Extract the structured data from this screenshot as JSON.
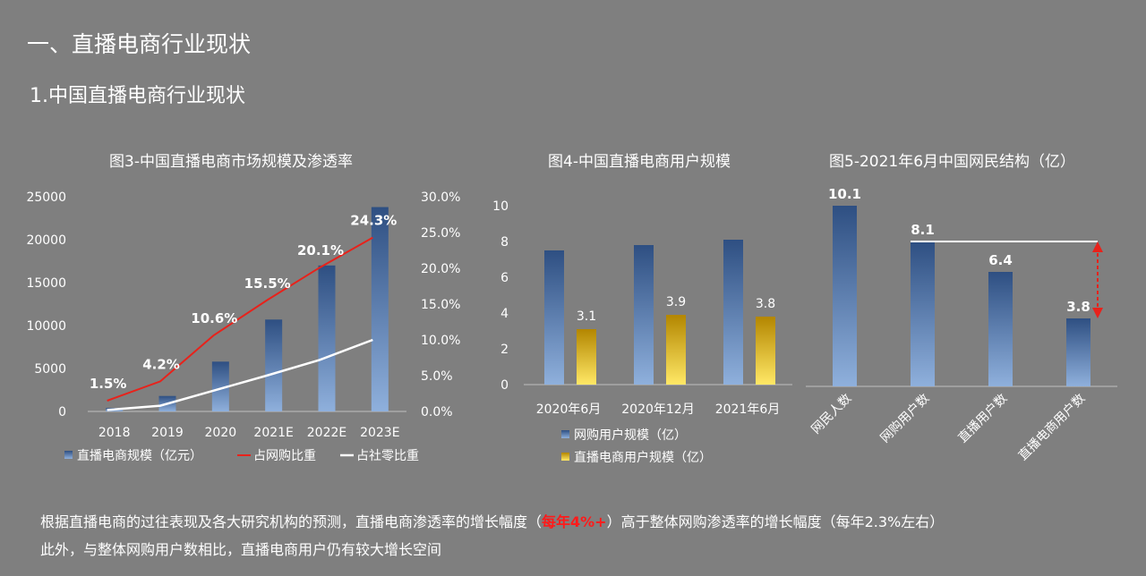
{
  "header": {
    "section_title": "一、直播电商行业现状",
    "subsection_title": "1.中国直播电商行业现状"
  },
  "colors": {
    "background": "#7f7f7f",
    "bar_blue_top": "#2e4f82",
    "bar_blue_bottom": "#8fb0dc",
    "bar_gold_top": "#b38600",
    "bar_gold_bottom": "#ffe866",
    "line_red": "#e8221b",
    "line_white": "#ffffff",
    "highlight_red": "#ff1a1a",
    "dashed_arrow": "#e8221b"
  },
  "chart_data": [
    {
      "type": "bar",
      "title": "图3-中国直播电商市场规模及渗透率",
      "categories": [
        "2018",
        "2019",
        "2020",
        "2021E",
        "2022E",
        "2023E"
      ],
      "series": [
        {
          "name": "直播电商规模（亿元）",
          "kind": "bar",
          "axis": "left",
          "values": [
            400,
            1800,
            5800,
            10700,
            17000,
            23800
          ]
        },
        {
          "name": "占网购比重",
          "kind": "line",
          "axis": "right",
          "values": [
            0.015,
            0.042,
            0.106,
            0.155,
            0.201,
            0.243
          ],
          "labels": [
            "1.5%",
            "4.2%",
            "10.6%",
            "15.5%",
            "20.1%",
            "24.3%"
          ]
        },
        {
          "name": "占社零比重",
          "kind": "line",
          "axis": "right",
          "values": [
            0.002,
            0.008,
            0.029,
            0.05,
            0.072,
            0.1
          ]
        }
      ],
      "y_left": {
        "ylim": [
          0,
          25000
        ],
        "ticks": [
          "0",
          "5000",
          "10000",
          "15000",
          "20000",
          "25000"
        ]
      },
      "y_right": {
        "ylim": [
          0,
          0.3
        ],
        "ticks": [
          "0.0%",
          "5.0%",
          "10.0%",
          "15.0%",
          "20.0%",
          "25.0%",
          "30.0%"
        ]
      },
      "legend": "bottom",
      "grid": false
    },
    {
      "type": "bar",
      "title": "图4-中国直播电商用户规模",
      "categories": [
        "2020年6月",
        "2020年12月",
        "2021年6月"
      ],
      "series": [
        {
          "name": "网购用户规模（亿）",
          "values": [
            7.5,
            7.8,
            8.1
          ]
        },
        {
          "name": "直播电商用户规模（亿）",
          "values": [
            3.1,
            3.9,
            3.8
          ],
          "labels": [
            "3.1",
            "3.9",
            "3.8"
          ]
        }
      ],
      "y": {
        "ylim": [
          0,
          10
        ],
        "ticks": [
          "0",
          "2",
          "4",
          "6",
          "8",
          "10"
        ]
      },
      "legend": "bottom",
      "grid": false
    },
    {
      "type": "bar",
      "title": "图5-2021年6月中国网民结构（亿）",
      "categories": [
        "网民人数",
        "网购用户数",
        "直播用户数",
        "直播电商用户数"
      ],
      "values": [
        10.1,
        8.1,
        6.4,
        3.8
      ],
      "labels": [
        "10.1",
        "8.1",
        "6.4",
        "3.8"
      ],
      "ylim": [
        0,
        11.2
      ],
      "annotation": "horizontal reference line at 8.1 with dashed red double arrow down to 3.8",
      "grid": false
    }
  ],
  "footer": {
    "line1_before": "根据直播电商的过往表现及各大研究机构的预测，直播电商渗透率的增长幅度（",
    "line1_highlight": "每年4%+",
    "line1_after": "）高于整体网购渗透率的增长幅度（每年2.3%左右）",
    "line2": "此外，与整体网购用户数相比，直播电商用户仍有较大增长空间"
  }
}
